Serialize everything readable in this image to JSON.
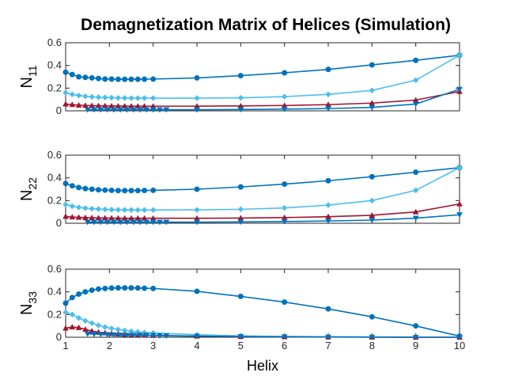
{
  "figure": {
    "title": "Demagnetization Matrix of Helices (Simulation)",
    "xlabel": "Helix"
  },
  "colors": {
    "series_1": "#0072BD",
    "series_2": "#4DBEEE",
    "series_3": "#A2142F",
    "series_4": "#0072BD",
    "axes": "#262626",
    "grid": "#ffffff"
  },
  "chart_data": [
    {
      "type": "line",
      "ylabel": "N",
      "ylabel_sub": "11",
      "xlim": [
        1,
        10
      ],
      "ylim": [
        0,
        0.6
      ],
      "xticks": [
        "1",
        "2",
        "3",
        "4",
        "5",
        "6",
        "7",
        "8",
        "9",
        "10"
      ],
      "yticks": [
        "0",
        "0.2",
        "0.4",
        "0.6"
      ],
      "series": [
        {
          "marker": "circle",
          "x": [
            1.0,
            1.15,
            1.3,
            1.45,
            1.6,
            1.75,
            1.9,
            2.05,
            2.2,
            2.35,
            2.5,
            2.65,
            2.8,
            3,
            4,
            5,
            6,
            7,
            8,
            9,
            10
          ],
          "y": [
            0.34,
            0.32,
            0.3,
            0.295,
            0.29,
            0.285,
            0.28,
            0.28,
            0.278,
            0.278,
            0.278,
            0.278,
            0.279,
            0.28,
            0.29,
            0.31,
            0.335,
            0.365,
            0.405,
            0.445,
            0.49
          ]
        },
        {
          "marker": "diamond",
          "x": [
            1.0,
            1.15,
            1.3,
            1.45,
            1.6,
            1.75,
            1.9,
            2.05,
            2.2,
            2.35,
            2.5,
            2.65,
            2.8,
            3,
            4,
            5,
            6,
            7,
            8,
            9,
            10
          ],
          "y": [
            0.16,
            0.145,
            0.135,
            0.128,
            0.123,
            0.12,
            0.118,
            0.116,
            0.114,
            0.113,
            0.112,
            0.112,
            0.112,
            0.112,
            0.112,
            0.115,
            0.125,
            0.145,
            0.18,
            0.27,
            0.49
          ]
        },
        {
          "marker": "triangle-up",
          "x": [
            1.0,
            1.15,
            1.3,
            1.45,
            1.6,
            1.75,
            1.9,
            2.05,
            2.2,
            2.35,
            2.5,
            2.65,
            2.8,
            3,
            4,
            5,
            6,
            7,
            8,
            9,
            10
          ],
          "y": [
            0.06,
            0.055,
            0.05,
            0.048,
            0.046,
            0.045,
            0.044,
            0.043,
            0.042,
            0.042,
            0.041,
            0.041,
            0.041,
            0.041,
            0.041,
            0.043,
            0.047,
            0.055,
            0.068,
            0.095,
            0.17
          ]
        },
        {
          "marker": "triangle-down",
          "x": [
            1.5,
            1.65,
            1.8,
            1.95,
            2.1,
            2.25,
            2.4,
            2.55,
            2.7,
            2.85,
            3.0,
            3.15,
            3.3,
            4,
            5,
            6,
            7,
            8,
            9,
            10
          ],
          "y": [
            0.01,
            0.01,
            0.01,
            0.01,
            0.01,
            0.01,
            0.01,
            0.01,
            0.01,
            0.01,
            0.01,
            0.01,
            0.01,
            0.01,
            0.012,
            0.015,
            0.02,
            0.03,
            0.06,
            0.19
          ]
        }
      ]
    },
    {
      "type": "line",
      "ylabel": "N",
      "ylabel_sub": "22",
      "xlim": [
        1,
        10
      ],
      "ylim": [
        0,
        0.6
      ],
      "xticks": [
        "1",
        "2",
        "3",
        "4",
        "5",
        "6",
        "7",
        "8",
        "9",
        "10"
      ],
      "yticks": [
        "0",
        "0.2",
        "0.4",
        "0.6"
      ],
      "series": [
        {
          "marker": "circle",
          "x": [
            1.0,
            1.15,
            1.3,
            1.45,
            1.6,
            1.75,
            1.9,
            2.05,
            2.2,
            2.35,
            2.5,
            2.65,
            2.8,
            3,
            4,
            5,
            6,
            7,
            8,
            9,
            10
          ],
          "y": [
            0.35,
            0.33,
            0.315,
            0.305,
            0.3,
            0.295,
            0.292,
            0.29,
            0.288,
            0.288,
            0.288,
            0.288,
            0.289,
            0.29,
            0.3,
            0.32,
            0.345,
            0.375,
            0.41,
            0.45,
            0.49
          ]
        },
        {
          "marker": "diamond",
          "x": [
            1.0,
            1.15,
            1.3,
            1.45,
            1.6,
            1.75,
            1.9,
            2.05,
            2.2,
            2.35,
            2.5,
            2.65,
            2.8,
            3,
            4,
            5,
            6,
            7,
            8,
            9,
            10
          ],
          "y": [
            0.165,
            0.15,
            0.14,
            0.133,
            0.128,
            0.125,
            0.122,
            0.12,
            0.119,
            0.118,
            0.117,
            0.117,
            0.117,
            0.117,
            0.118,
            0.123,
            0.135,
            0.16,
            0.2,
            0.29,
            0.49
          ]
        },
        {
          "marker": "triangle-up",
          "x": [
            1.0,
            1.15,
            1.3,
            1.45,
            1.6,
            1.75,
            1.9,
            2.05,
            2.2,
            2.35,
            2.5,
            2.65,
            2.8,
            3,
            4,
            5,
            6,
            7,
            8,
            9,
            10
          ],
          "y": [
            0.06,
            0.055,
            0.052,
            0.05,
            0.048,
            0.047,
            0.046,
            0.045,
            0.045,
            0.044,
            0.044,
            0.044,
            0.044,
            0.044,
            0.044,
            0.046,
            0.05,
            0.058,
            0.07,
            0.1,
            0.17
          ]
        },
        {
          "marker": "triangle-down",
          "x": [
            1.5,
            1.65,
            1.8,
            1.95,
            2.1,
            2.25,
            2.4,
            2.55,
            2.7,
            2.85,
            3.0,
            3.15,
            3.3,
            4,
            5,
            6,
            7,
            8,
            9,
            10
          ],
          "y": [
            0.01,
            0.01,
            0.01,
            0.01,
            0.01,
            0.01,
            0.01,
            0.01,
            0.01,
            0.01,
            0.01,
            0.01,
            0.01,
            0.01,
            0.012,
            0.015,
            0.02,
            0.028,
            0.045,
            0.075
          ]
        }
      ]
    },
    {
      "type": "line",
      "ylabel": "N",
      "ylabel_sub": "33",
      "xlim": [
        1,
        10
      ],
      "ylim": [
        0,
        0.6
      ],
      "xticks": [
        "1",
        "2",
        "3",
        "4",
        "5",
        "6",
        "7",
        "8",
        "9",
        "10"
      ],
      "yticks": [
        "0",
        "0.2",
        "0.4",
        "0.6"
      ],
      "series": [
        {
          "marker": "circle",
          "x": [
            1.0,
            1.15,
            1.3,
            1.45,
            1.6,
            1.75,
            1.9,
            2.05,
            2.2,
            2.35,
            2.5,
            2.65,
            2.8,
            3,
            4,
            5,
            6,
            7,
            8,
            9,
            10
          ],
          "y": [
            0.3,
            0.35,
            0.38,
            0.4,
            0.415,
            0.425,
            0.43,
            0.433,
            0.435,
            0.435,
            0.435,
            0.434,
            0.432,
            0.43,
            0.405,
            0.36,
            0.31,
            0.25,
            0.18,
            0.1,
            0.01
          ]
        },
        {
          "marker": "diamond",
          "x": [
            1.0,
            1.15,
            1.3,
            1.45,
            1.6,
            1.75,
            1.9,
            2.05,
            2.2,
            2.35,
            2.5,
            2.65,
            2.8,
            3,
            4,
            5,
            6,
            7,
            8,
            9,
            10
          ],
          "y": [
            0.22,
            0.2,
            0.17,
            0.145,
            0.125,
            0.105,
            0.09,
            0.078,
            0.068,
            0.06,
            0.053,
            0.047,
            0.042,
            0.038,
            0.022,
            0.012,
            0.007,
            0.004,
            0.002,
            0.001,
            0.0
          ]
        },
        {
          "marker": "triangle-up",
          "x": [
            1.0,
            1.15,
            1.3,
            1.45,
            1.6,
            1.75,
            1.9,
            2.05,
            2.2,
            2.35,
            2.5,
            2.65,
            2.8,
            3,
            4,
            5,
            6,
            7,
            8,
            9,
            10
          ],
          "y": [
            0.08,
            0.09,
            0.085,
            0.07,
            0.055,
            0.045,
            0.038,
            0.032,
            0.028,
            0.025,
            0.022,
            0.02,
            0.018,
            0.016,
            0.01,
            0.006,
            0.004,
            0.002,
            0.001,
            0.0,
            0.0
          ]
        },
        {
          "marker": "triangle-down",
          "x": [
            1.5,
            1.65,
            1.8,
            1.95,
            2.1,
            2.25,
            2.4,
            2.55,
            2.7,
            2.85,
            3.0,
            3.15,
            3.3,
            4,
            5,
            6,
            7,
            8,
            9,
            10
          ],
          "y": [
            0.03,
            0.028,
            0.026,
            0.024,
            0.022,
            0.02,
            0.019,
            0.018,
            0.017,
            0.016,
            0.015,
            0.014,
            0.013,
            0.01,
            0.006,
            0.004,
            0.002,
            0.001,
            0.0,
            0.0
          ]
        }
      ]
    }
  ]
}
